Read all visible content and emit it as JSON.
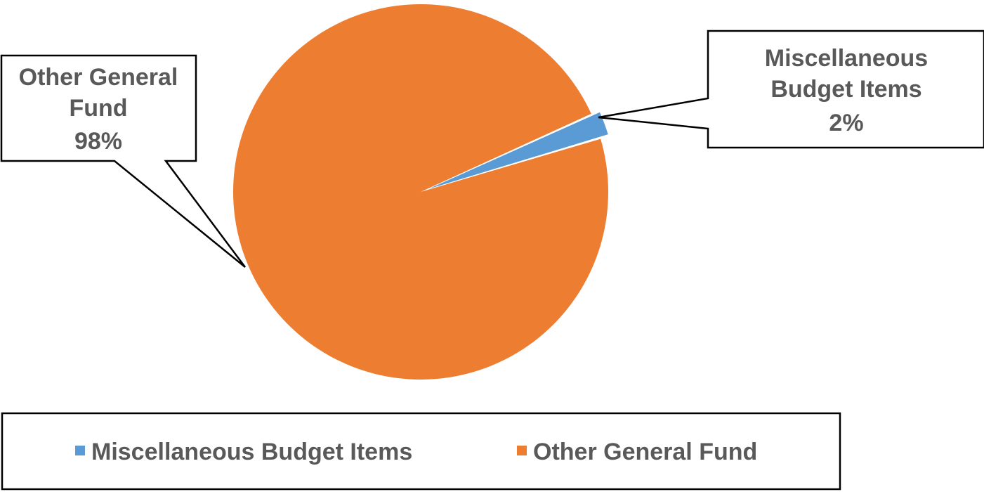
{
  "chart_data": {
    "type": "pie",
    "slices": [
      {
        "label": "Miscellaneous Budget Items",
        "value": 2,
        "value_label": "2%",
        "color": "#5B9BD5"
      },
      {
        "label": "Other General Fund",
        "value": 98,
        "value_label": "98%",
        "color": "#ED7D31"
      }
    ],
    "legend": {
      "position": "bottom",
      "entries": [
        "Miscellaneous Budget Items",
        "Other General Fund"
      ]
    },
    "exploded_slice": "Miscellaneous Budget Items"
  },
  "callouts": {
    "misc": {
      "line1": "Miscellaneous",
      "line2": "Budget Items",
      "line3": "2%"
    },
    "other": {
      "line1": "Other General",
      "line2": "Fund",
      "line3": "98%"
    }
  },
  "colors": {
    "text": "#595959",
    "callout_border": "#000000"
  }
}
